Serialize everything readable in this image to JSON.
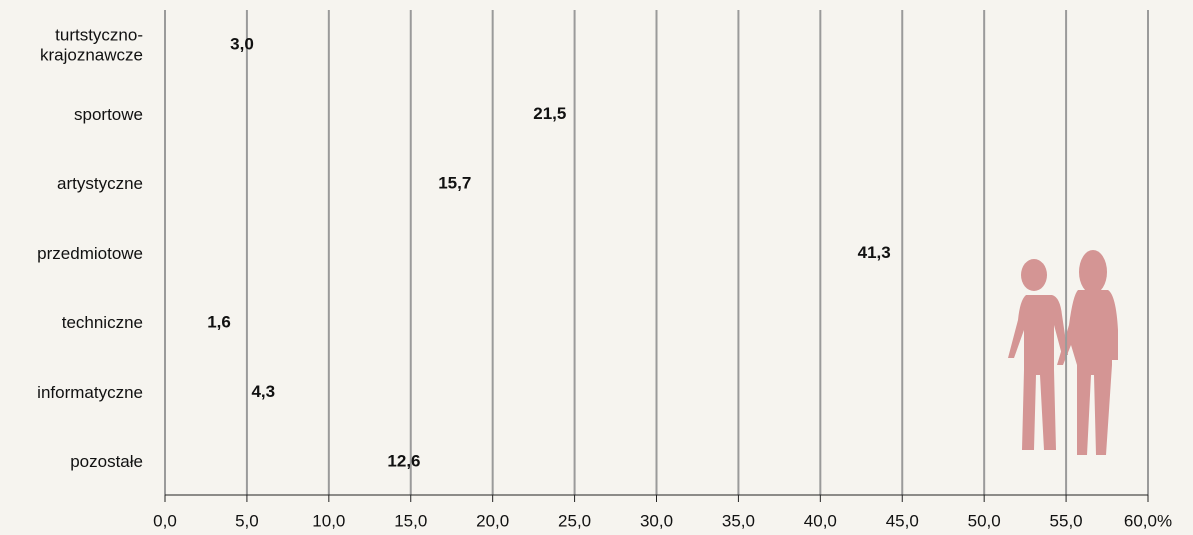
{
  "chart_data": {
    "type": "pictograph",
    "categories": [
      "turtstyczno-\nkrajoznawcze",
      "sportowe",
      "artystyczne",
      "przedmiotowe",
      "techniczne",
      "informatyczne",
      "pozostałe"
    ],
    "values": [
      3.0,
      21.5,
      15.7,
      41.3,
      1.6,
      4.3,
      12.6
    ],
    "value_labels": [
      "3,0",
      "21,5",
      "15,7",
      "41,3",
      "1,6",
      "4,3",
      "12,6"
    ],
    "color": "#6b4e44",
    "xlim": [
      0,
      60
    ],
    "xticks": [
      {
        "value": 0,
        "label": "0,0"
      },
      {
        "value": 5,
        "label": "5,0"
      },
      {
        "value": 10,
        "label": "10,0"
      },
      {
        "value": 15,
        "label": "15,0"
      },
      {
        "value": 20,
        "label": "20,0"
      },
      {
        "value": 25,
        "label": "25,0"
      },
      {
        "value": 30,
        "label": "30,0"
      },
      {
        "value": 35,
        "label": "35,0"
      },
      {
        "value": 40,
        "label": "40,0"
      },
      {
        "value": 45,
        "label": "45,0"
      },
      {
        "value": 50,
        "label": "50,0"
      },
      {
        "value": 55,
        "label": "55,0"
      },
      {
        "value": 60,
        "label": "60,0%"
      }
    ],
    "grid": true
  }
}
